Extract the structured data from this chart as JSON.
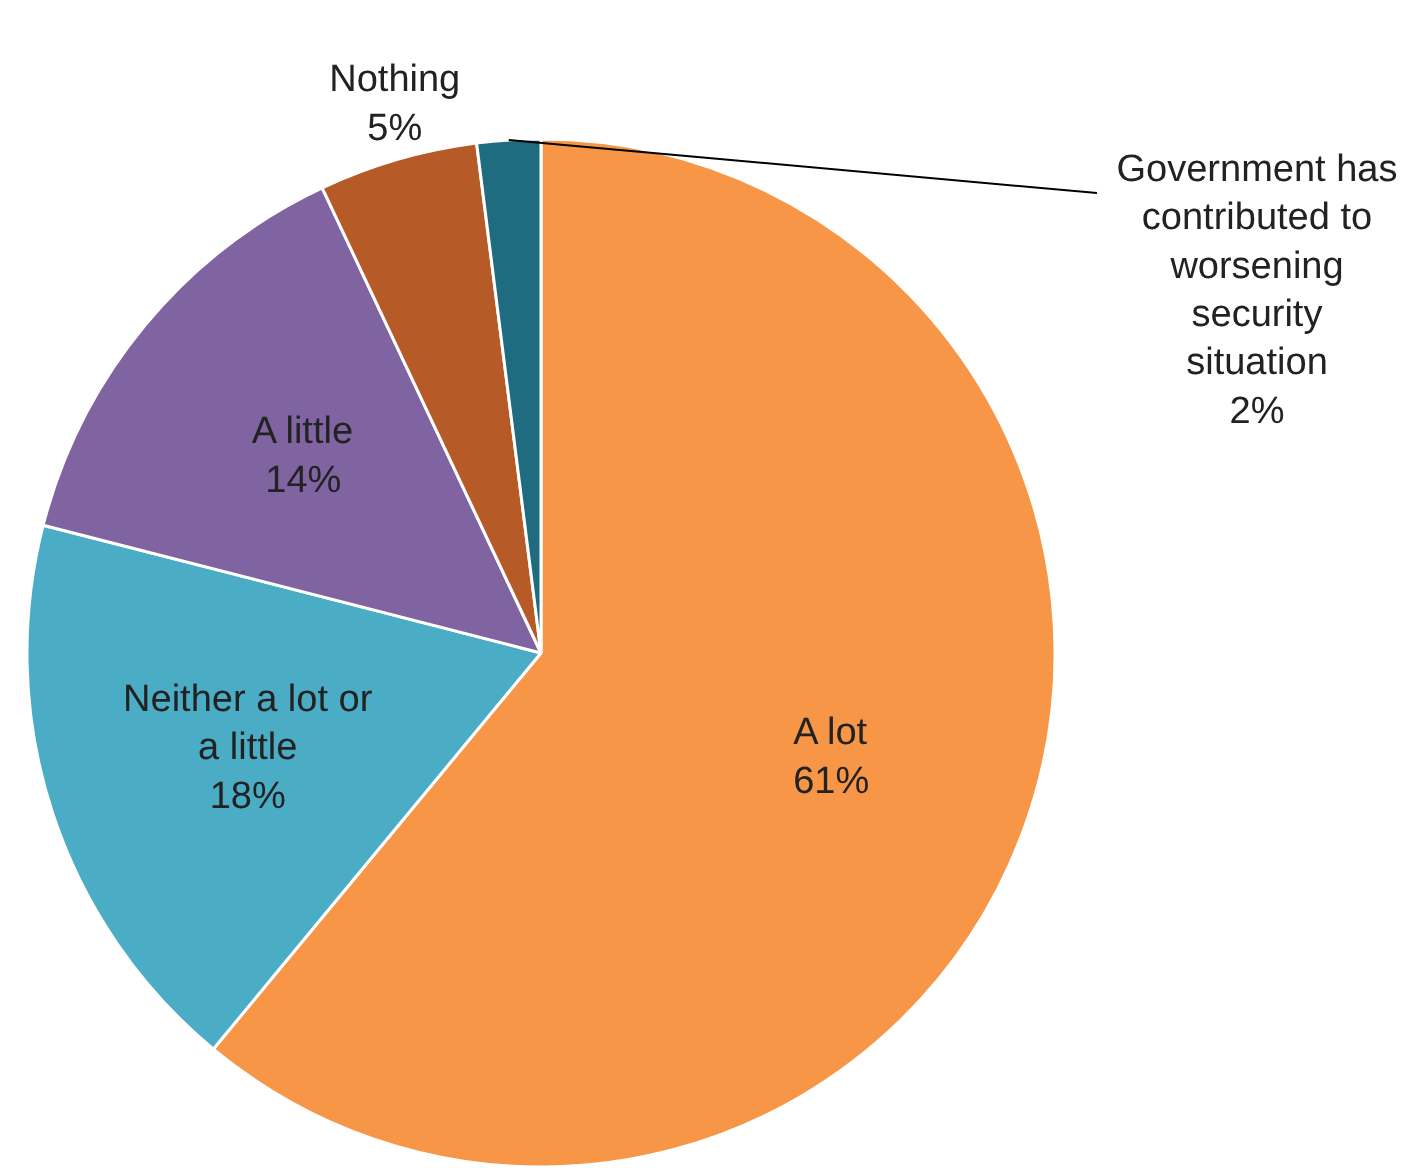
{
  "chart_data": {
    "type": "pie",
    "categories": [
      "A lot",
      "Neither a lot or a little",
      "A little",
      "Nothing",
      "Government has contributed to worsening security situation"
    ],
    "values": [
      61,
      18,
      14,
      5,
      2
    ],
    "value_labels": [
      "61%",
      "18%",
      "14%",
      "5%",
      "2%"
    ],
    "colors": [
      "#f79646",
      "#4bacc6",
      "#8064a2",
      "#b65a28",
      "#1f6b7f"
    ]
  }
}
